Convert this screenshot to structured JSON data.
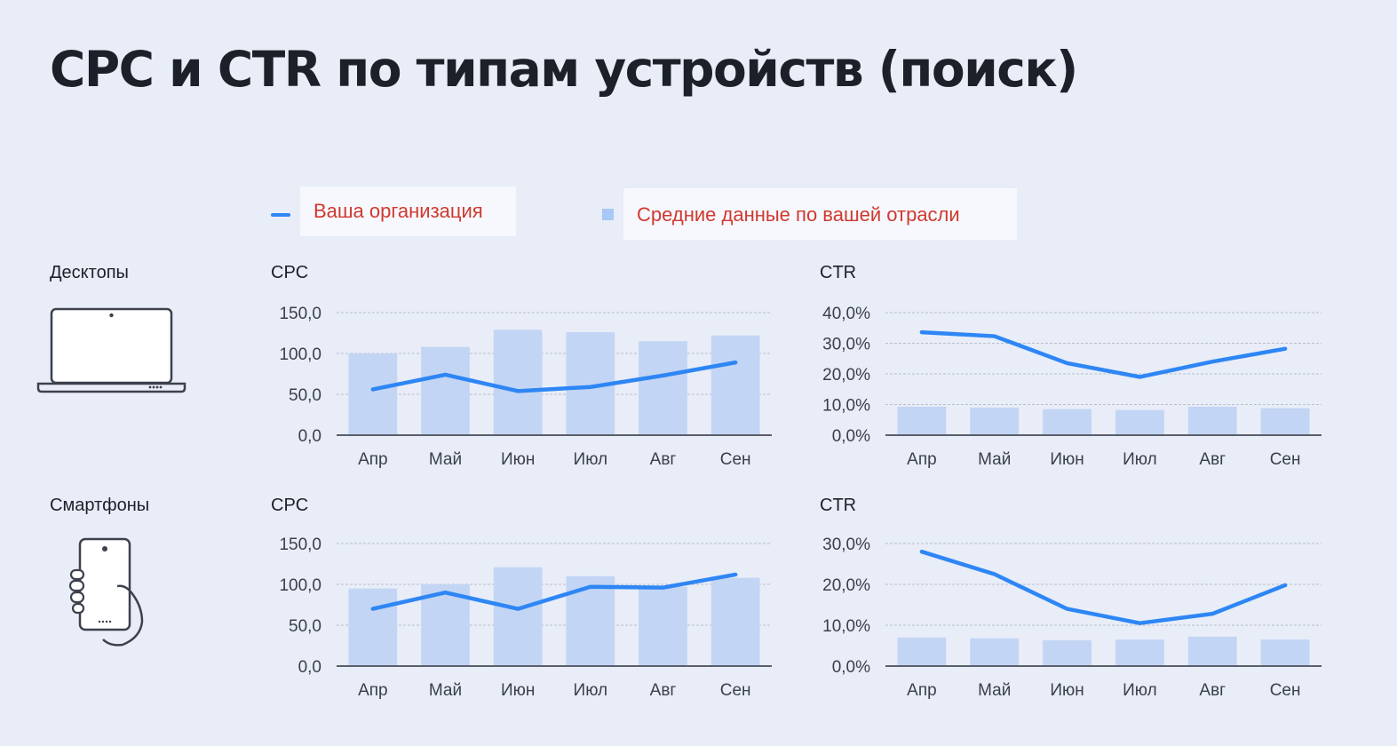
{
  "title": "CPC и CTR по типам устройств (поиск)",
  "legend": {
    "line_label": "Ваша организация",
    "bar_label": "Средние данные по вашей отрасли"
  },
  "rows": [
    {
      "label": "Десктопы",
      "icon": "laptop-icon"
    },
    {
      "label": "Смартфоны",
      "icon": "smartphone-icon"
    }
  ],
  "colors": {
    "line": "#2e86f5",
    "bar": "#c3d5f4",
    "grid": "#b9bfcc",
    "axis": "#5a5f6b"
  },
  "chart_data": [
    {
      "type": "bar+line",
      "device": "Десктопы",
      "title": "CPC",
      "categories": [
        "Апр",
        "Май",
        "Июн",
        "Июл",
        "Авг",
        "Сен"
      ],
      "yticks": [
        0,
        50,
        100,
        150
      ],
      "ytick_labels": [
        "0,0",
        "50,0",
        "100,0",
        "150,0"
      ],
      "ylim": [
        0,
        150
      ],
      "series": [
        {
          "name": "Средние данные по вашей отрасли",
          "type": "bar",
          "values": [
            100,
            108,
            129,
            126,
            115,
            122
          ]
        },
        {
          "name": "Ваша организация",
          "type": "line",
          "values": [
            56,
            74,
            54,
            59,
            73,
            89
          ]
        }
      ]
    },
    {
      "type": "bar+line",
      "device": "Десктопы",
      "title": "CTR",
      "categories": [
        "Апр",
        "Май",
        "Июн",
        "Июл",
        "Авг",
        "Сен"
      ],
      "yticks": [
        0,
        10,
        20,
        30,
        40
      ],
      "ytick_labels": [
        "0,0%",
        "10,0%",
        "20,0%",
        "30,0%",
        "40,0%"
      ],
      "ylim": [
        0,
        40
      ],
      "series": [
        {
          "name": "Средние данные по вашей отрасли",
          "type": "bar",
          "values": [
            9.3,
            9.0,
            8.5,
            8.2,
            9.3,
            8.8
          ]
        },
        {
          "name": "Ваша организация",
          "type": "line",
          "values": [
            33.6,
            32.3,
            23.5,
            19.0,
            24.0,
            28.2
          ]
        }
      ]
    },
    {
      "type": "bar+line",
      "device": "Смартфоны",
      "title": "CPC",
      "categories": [
        "Апр",
        "Май",
        "Июн",
        "Июл",
        "Авг",
        "Сен"
      ],
      "yticks": [
        0,
        50,
        100,
        150
      ],
      "ytick_labels": [
        "0,0",
        "50,0",
        "100,0",
        "150,0"
      ],
      "ylim": [
        0,
        150
      ],
      "series": [
        {
          "name": "Средние данные по вашей отрасли",
          "type": "bar",
          "values": [
            95,
            100,
            121,
            110,
            97,
            108
          ]
        },
        {
          "name": "Ваша организация",
          "type": "line",
          "values": [
            70,
            90,
            70,
            97,
            96,
            112
          ]
        }
      ]
    },
    {
      "type": "bar+line",
      "device": "Смартфоны",
      "title": "CTR",
      "categories": [
        "Апр",
        "Май",
        "Июн",
        "Июл",
        "Авг",
        "Сен"
      ],
      "yticks": [
        0,
        10,
        20,
        30
      ],
      "ytick_labels": [
        "0,0%",
        "10,0%",
        "20,0%",
        "30,0%"
      ],
      "ylim": [
        0,
        30
      ],
      "series": [
        {
          "name": "Средние данные по вашей отрасли",
          "type": "bar",
          "values": [
            7.0,
            6.8,
            6.3,
            6.5,
            7.2,
            6.5
          ]
        },
        {
          "name": "Ваша организация",
          "type": "line",
          "values": [
            28.0,
            22.5,
            14.0,
            10.5,
            12.8,
            19.8
          ]
        }
      ]
    }
  ]
}
